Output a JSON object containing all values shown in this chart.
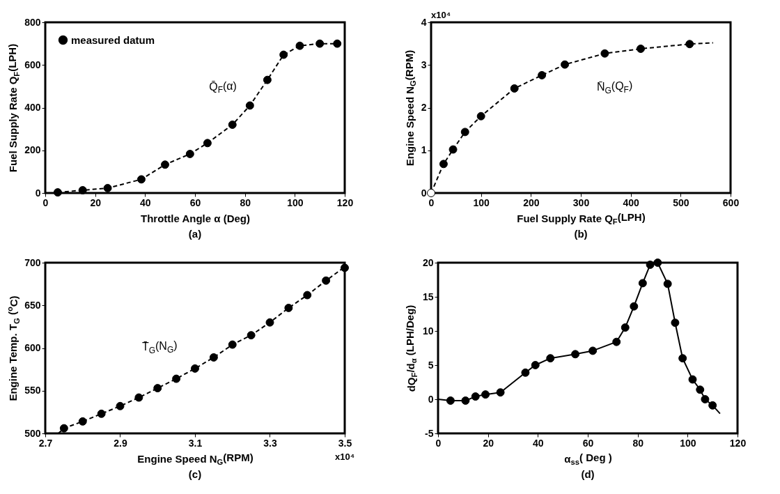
{
  "chart_data": [
    {
      "type": "scatter",
      "title": "(a)",
      "xlabel": "Throttle Angle  α (Deg)",
      "ylabel": "Fuel Supply Rate Q$_{F}$(LPH)",
      "xlim": [
        0,
        120
      ],
      "ylim": [
        0,
        800
      ],
      "xticks": [
        0,
        20,
        40,
        60,
        80,
        100,
        120
      ],
      "yticks": [
        0,
        200,
        400,
        600,
        800
      ],
      "grid": false,
      "legend": "top left",
      "marker": "circle",
      "annotations": [
        {
          "text": "Q̄$_{F}$(α)",
          "x": 79,
          "y": 360
        }
      ],
      "series": [
        {
          "type": "line",
          "marker": "none",
          "line_style": "dashed",
          "color": "#000000",
          "x": [
            5,
            15,
            25,
            38.5,
            48,
            58,
            65,
            75,
            82,
            89,
            95.5,
            102,
            110,
            117
          ],
          "values": [
            3,
            13,
            23,
            64,
            133,
            183,
            234,
            320,
            410,
            530,
            648,
            690,
            700,
            700
          ]
        },
        {
          "name": "measured datum",
          "color": "#000000",
          "x": [
            5,
            15,
            25,
            38.5,
            48,
            58,
            65,
            75,
            82,
            89,
            95.5,
            102,
            110,
            117
          ],
          "values": [
            3,
            13,
            23,
            64,
            133,
            183,
            234,
            320,
            410,
            530,
            648,
            690,
            700,
            700
          ]
        }
      ]
    },
    {
      "type": "scatter",
      "title": "(b)",
      "xlabel": "Fuel Supply Rate Q$_{F}$(LPH)",
      "ylabel": "Engine Speed N$_{G}$(RPM)",
      "xlim": [
        0,
        600
      ],
      "ylim": [
        0,
        4
      ],
      "xticks": [
        0,
        100,
        200,
        300,
        400,
        500,
        600
      ],
      "yticks": [
        0,
        1,
        2,
        3,
        4
      ],
      "grid": false,
      "legend": "top left",
      "marker": "circle",
      "annotations": [
        "x10⁴",
        {
          "text": "N̄$_{G}$(Q$_{F}$)",
          "x": 305,
          "y": 3.1
        }
      ],
      "series": [
        {
          "type": "line",
          "marker": "none",
          "line_style": "dashed",
          "color": "#000000",
          "x": [
            0,
            25,
            44,
            68,
            100,
            167,
            222,
            268,
            348,
            420,
            518,
            565
          ],
          "values": [
            0,
            0.68,
            1.02,
            1.43,
            1.8,
            2.45,
            2.76,
            3.01,
            3.27,
            3.38,
            3.49,
            3.52
          ]
        },
        {
          "color": "#ffffff",
          "x": [
            0
          ],
          "values": [
            0
          ]
        },
        {
          "name": "measured datum",
          "color": "#000000",
          "x": [
            25,
            44,
            68,
            100,
            167,
            222,
            268,
            348,
            420,
            518
          ],
          "values": [
            0.68,
            1.02,
            1.43,
            1.8,
            2.45,
            2.76,
            3.01,
            3.27,
            3.38,
            3.49
          ]
        }
      ]
    },
    {
      "type": "scatter",
      "title": "(c)",
      "xlabel": "Engine Speed N$_{G}$(RPM)",
      "ylabel": "Engine Temp. T$_{G}$ ($^{o}$C)",
      "xlim": [
        2.7,
        3.5
      ],
      "ylim": [
        500,
        700
      ],
      "xticks": [
        2.7,
        2.9,
        3.1,
        3.3,
        3.5
      ],
      "yticks": [
        500,
        550,
        600,
        650,
        700
      ],
      "grid": false,
      "legend": "top left",
      "marker": "circle",
      "annotations": [
        "x10⁴",
        {
          "text": "T̄$_{G}$(N$_{G}$)",
          "x": 3.08,
          "y": 570
        }
      ],
      "series": [
        {
          "type": "line",
          "marker": "none",
          "line_style": "dashed",
          "color": "#000000",
          "x": [
            2.735,
            2.75,
            2.8,
            2.85,
            2.9,
            2.95,
            3.0,
            3.05,
            3.1,
            3.15,
            3.2,
            3.25,
            3.3,
            3.35,
            3.4,
            3.45,
            3.5
          ],
          "values": [
            500,
            506,
            514,
            523,
            532,
            542,
            553,
            564,
            576,
            589,
            604,
            615,
            630,
            647,
            662,
            679,
            695
          ]
        },
        {
          "name": "measured datum",
          "color": "#000000",
          "x": [
            2.75,
            2.8,
            2.85,
            2.9,
            2.95,
            3.0,
            3.05,
            3.1,
            3.15,
            3.2,
            3.25,
            3.3,
            3.35,
            3.4,
            3.45,
            3.5
          ],
          "values": [
            506,
            514,
            523,
            532,
            542,
            553,
            564,
            576,
            589,
            604,
            615,
            630,
            647,
            662,
            679,
            694
          ]
        }
      ]
    },
    {
      "type": "scatter",
      "title": "(d)",
      "xlabel": "α$_{ss}$( Deg )",
      "ylabel": "dQ$_{F}$/d$_{α}$ (LPH/Deg)",
      "xlim": [
        0,
        120
      ],
      "ylim": [
        -5,
        20
      ],
      "xticks": [
        0,
        20,
        40,
        60,
        80,
        100,
        120
      ],
      "yticks": [
        -5,
        0,
        5,
        10,
        15,
        20
      ],
      "grid": false,
      "marker": "circle",
      "series": [
        {
          "type": "line",
          "marker": "none",
          "line_style": "solid",
          "color": "#000000",
          "x": [
            0,
            5,
            11,
            15,
            19,
            25,
            35,
            39,
            45,
            55,
            62,
            71.5,
            75,
            78.5,
            82,
            85,
            88,
            92,
            95,
            98,
            102,
            105,
            107,
            110,
            113
          ],
          "values": [
            0,
            -0.2,
            -0.2,
            0.4,
            0.7,
            1,
            3.9,
            5,
            6,
            6.6,
            7.1,
            8.4,
            10.5,
            13.6,
            17,
            19.7,
            20,
            16.9,
            11.2,
            6,
            2.9,
            1.4,
            0,
            -0.9,
            -2.1
          ]
        },
        {
          "color": "#000000",
          "x": [
            5,
            11,
            15,
            19,
            25,
            35,
            39,
            45,
            55,
            62,
            71.5,
            75,
            78.5,
            82,
            85,
            88,
            92,
            95,
            98,
            102,
            105,
            107,
            110
          ],
          "values": [
            -0.2,
            -0.2,
            0.4,
            0.7,
            1,
            3.9,
            5,
            6,
            6.6,
            7.1,
            8.4,
            10.5,
            13.6,
            17,
            19.7,
            20,
            16.9,
            11.2,
            6,
            2.9,
            1.4,
            0,
            -0.9
          ]
        }
      ]
    }
  ]
}
